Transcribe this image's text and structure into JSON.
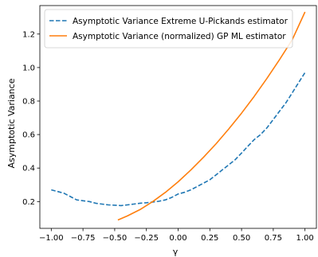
{
  "chart_data": {
    "type": "line",
    "title": "",
    "xlabel": "γ",
    "ylabel": "Asymptotic Variance",
    "xlim": [
      -1.09,
      1.09
    ],
    "ylim": [
      0.04,
      1.37
    ],
    "xticks": [
      -1.0,
      -0.75,
      -0.5,
      -0.25,
      0.0,
      0.25,
      0.5,
      0.75,
      1.0
    ],
    "xtick_labels": [
      "−1.00",
      "−0.75",
      "−0.50",
      "−0.25",
      "0.00",
      "0.25",
      "0.50",
      "0.75",
      "1.00"
    ],
    "yticks": [
      0.2,
      0.4,
      0.6,
      0.8,
      1.0,
      1.2
    ],
    "ytick_labels": [
      "0.2",
      "0.4",
      "0.6",
      "0.8",
      "1.0",
      "1.2"
    ],
    "grid": false,
    "legend_position": "top-left",
    "series": [
      {
        "name": "Asymptotic Variance Extreme U-Pickands estimator",
        "color": "#1f77b4",
        "style": "dashed",
        "x": [
          -1.0,
          -0.95,
          -0.9,
          -0.85,
          -0.8,
          -0.75,
          -0.7,
          -0.65,
          -0.6,
          -0.55,
          -0.5,
          -0.45,
          -0.4,
          -0.35,
          -0.3,
          -0.25,
          -0.2,
          -0.15,
          -0.1,
          -0.05,
          0.0,
          0.05,
          0.1,
          0.15,
          0.2,
          0.25,
          0.3,
          0.35,
          0.4,
          0.45,
          0.5,
          0.55,
          0.6,
          0.65,
          0.7,
          0.75,
          0.8,
          0.85,
          0.9,
          0.95,
          1.0
        ],
        "y": [
          0.27,
          0.26,
          0.25,
          0.23,
          0.21,
          0.205,
          0.2,
          0.19,
          0.185,
          0.18,
          0.178,
          0.176,
          0.18,
          0.185,
          0.19,
          0.193,
          0.197,
          0.202,
          0.21,
          0.225,
          0.245,
          0.255,
          0.27,
          0.29,
          0.31,
          0.33,
          0.36,
          0.39,
          0.42,
          0.45,
          0.49,
          0.53,
          0.57,
          0.6,
          0.64,
          0.69,
          0.74,
          0.79,
          0.85,
          0.91,
          0.97
        ]
      },
      {
        "name": "Asymptotic Variance (normalized) GP ML estimator",
        "color": "#ff7f0e",
        "style": "solid",
        "x": [
          -0.475,
          -0.4,
          -0.3,
          -0.2,
          -0.1,
          0.0,
          0.1,
          0.2,
          0.3,
          0.4,
          0.5,
          0.6,
          0.7,
          0.8,
          0.9,
          1.0
        ],
        "y": [
          0.09,
          0.114,
          0.152,
          0.2,
          0.255,
          0.318,
          0.388,
          0.464,
          0.546,
          0.634,
          0.728,
          0.828,
          0.935,
          1.048,
          1.167,
          1.332
        ]
      }
    ]
  }
}
